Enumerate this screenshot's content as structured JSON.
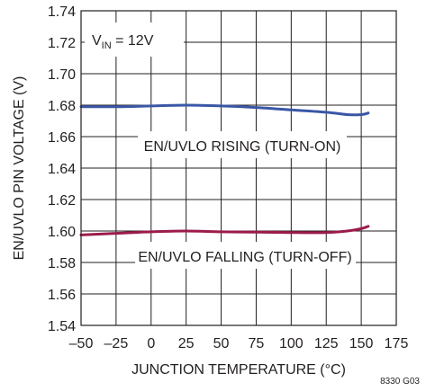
{
  "chart_data": {
    "type": "line",
    "xlabel": "JUNCTION TEMPERATURE (°C)",
    "ylabel": "EN/UVLO PIN VOLTAGE (V)",
    "xlim": [
      -50,
      175
    ],
    "ylim": [
      1.54,
      1.74
    ],
    "x_ticks": [
      -50,
      -25,
      0,
      25,
      50,
      75,
      100,
      125,
      150,
      175
    ],
    "x_tick_labels": [
      "–50",
      "–25",
      "0",
      "25",
      "50",
      "75",
      "100",
      "125",
      "150",
      "175"
    ],
    "y_ticks": [
      1.54,
      1.56,
      1.58,
      1.6,
      1.62,
      1.64,
      1.66,
      1.68,
      1.7,
      1.72,
      1.74
    ],
    "y_tick_labels": [
      "1.54",
      "1.56",
      "1.58",
      "1.60",
      "1.62",
      "1.64",
      "1.66",
      "1.68",
      "1.70",
      "1.72",
      "1.74"
    ],
    "grid": true,
    "annotations": {
      "condition_prefix": "V",
      "condition_sub": "IN",
      "condition_suffix": " = 12V",
      "figure_code": "8330 G03"
    },
    "series": [
      {
        "label": "EN/UVLO RISING (TURN-ON)",
        "color": "#3a57a6",
        "x": [
          -50,
          -25,
          0,
          25,
          50,
          75,
          100,
          125,
          140,
          150,
          155
        ],
        "y": [
          1.679,
          1.679,
          1.6795,
          1.68,
          1.6795,
          1.6785,
          1.677,
          1.6755,
          1.674,
          1.674,
          1.675
        ]
      },
      {
        "label": "EN/UVLO FALLING (TURN-OFF)",
        "color": "#9b1b4b",
        "x": [
          -50,
          -25,
          0,
          25,
          50,
          75,
          100,
          125,
          140,
          150,
          155
        ],
        "y": [
          1.5975,
          1.5985,
          1.5995,
          1.6,
          1.5995,
          1.5993,
          1.599,
          1.599,
          1.6,
          1.6015,
          1.603
        ]
      }
    ]
  }
}
